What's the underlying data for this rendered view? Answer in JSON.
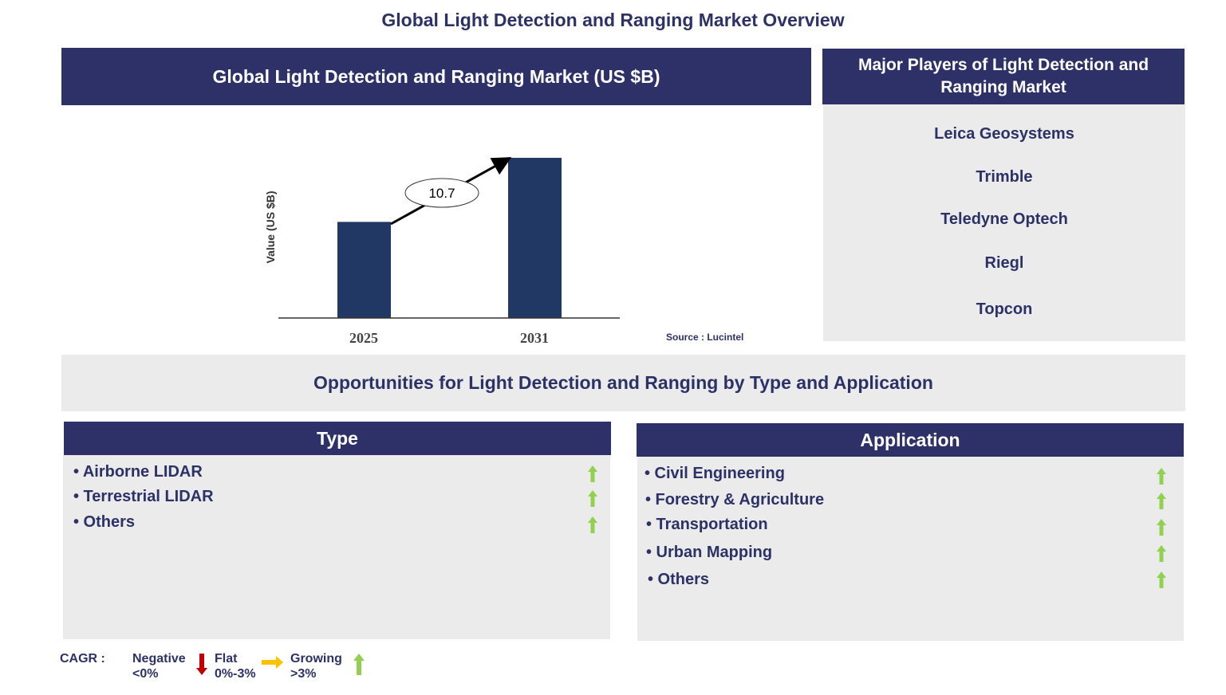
{
  "title": "Global Light Detection and Ranging Market Overview",
  "market_panel": {
    "title": "Global Light Detection and Ranging Market (US $B)",
    "source": "Source : Lucintel"
  },
  "chart_data": {
    "type": "bar",
    "categories": [
      "2025",
      "2031"
    ],
    "values": [
      60,
      100
    ],
    "ylim": [
      0,
      100
    ],
    "ylabel": "Value (US $B)",
    "xlabel": "",
    "annotation": "10.7",
    "grid": false,
    "bar_color": "#213864"
  },
  "players": {
    "title": "Major Players of Light Detection and Ranging Market",
    "items": [
      "Leica Geosystems",
      "Trimble",
      "Teledyne Optech",
      "Riegl",
      "Topcon"
    ]
  },
  "opportunities": {
    "title": "Opportunities for Light Detection and Ranging by Type and Application"
  },
  "type": {
    "title": "Type",
    "items": [
      {
        "label": "• Airborne LIDAR",
        "trend": "growing"
      },
      {
        "label": "• Terrestrial LIDAR",
        "trend": "growing"
      },
      {
        "label": "• Others",
        "trend": "growing"
      }
    ]
  },
  "application": {
    "title": "Application",
    "items": [
      {
        "label": "• Civil Engineering",
        "trend": "growing"
      },
      {
        "label": "• Forestry & Agriculture",
        "trend": "growing"
      },
      {
        "label": "• Transportation",
        "trend": "growing"
      },
      {
        "label": "• Urban Mapping",
        "trend": "growing"
      },
      {
        "label": "• Others",
        "trend": "growing"
      }
    ]
  },
  "legend": {
    "label": "CAGR :",
    "negative": "Negative",
    "negative_range": "<0%",
    "flat": "Flat",
    "flat_range": "0%-3%",
    "growing": "Growing",
    "growing_range": ">3%",
    "colors": {
      "negative": "#c00000",
      "flat": "#ffc000",
      "growing": "#92d050"
    }
  }
}
